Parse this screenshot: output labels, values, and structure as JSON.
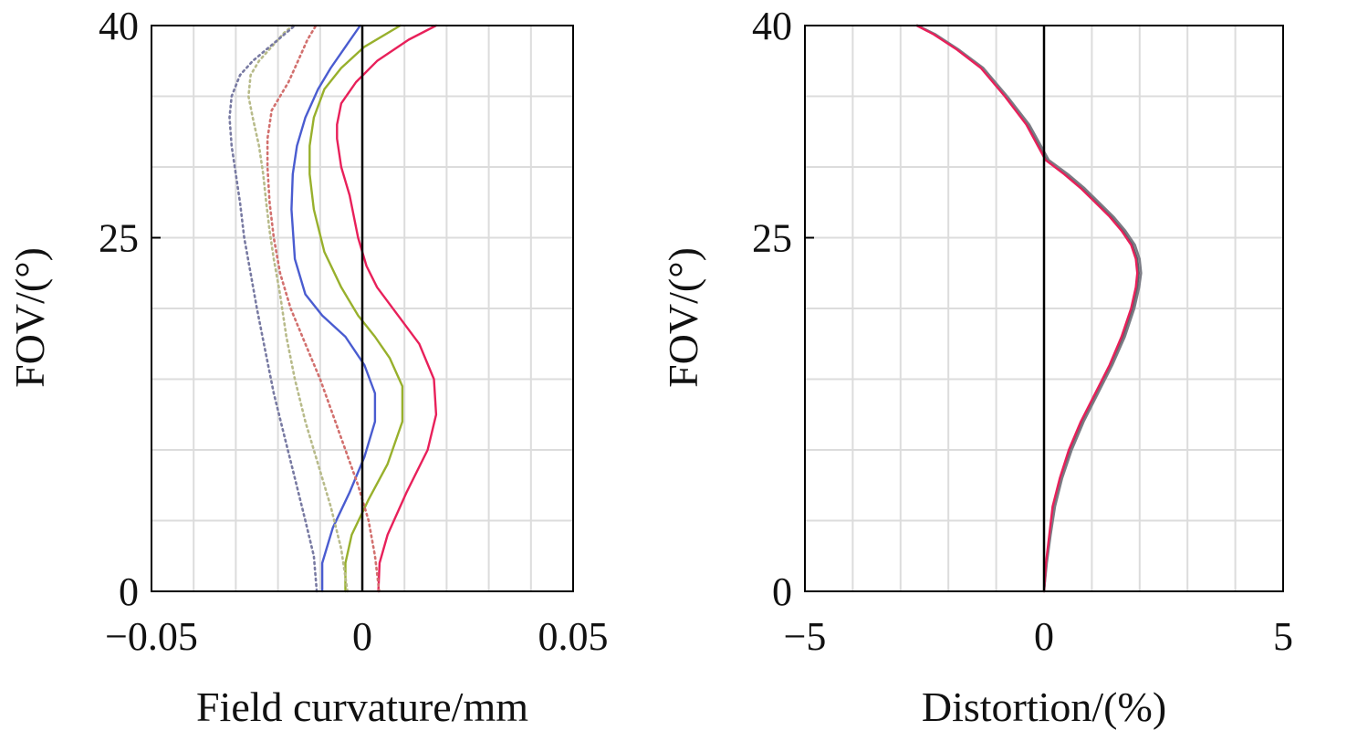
{
  "chart_data": [
    {
      "type": "line",
      "xlabel": "Field curvature/mm",
      "ylabel": "FOV/(°)",
      "xlim": [
        -0.05,
        0.05
      ],
      "ylim": [
        0,
        40
      ],
      "xticks": [
        -0.05,
        0,
        0.05
      ],
      "xtick_labels": [
        "−0.05",
        "0",
        "0.05"
      ],
      "yticks": [
        0,
        25,
        40
      ],
      "ytick_labels": [
        "0",
        "25",
        "40"
      ],
      "grid": true,
      "colors": {
        "sagittal_red": "#e8205a",
        "sagittal_green": "#98b02c",
        "sagittal_blue": "#4a5cd0",
        "tangential_red": "#d2706e",
        "tangential_green": "#b8bb8a",
        "tangential_blue": "#787aa2"
      },
      "series": [
        {
          "color": "#e8205a",
          "style": "solid",
          "x": [
            0.0038,
            0.0041,
            0.006,
            0.0105,
            0.0155,
            0.0175,
            0.017,
            0.0135,
            0.0085,
            0.0035,
            0.001,
            -0.001,
            -0.003,
            -0.005,
            -0.006,
            -0.006,
            -0.005,
            -0.0015,
            0.0035,
            0.011,
            0.0175
          ],
          "y": [
            0,
            2,
            4,
            7,
            10,
            12.5,
            15,
            17.5,
            19.5,
            21.5,
            23,
            25,
            28,
            30,
            32,
            33,
            34.5,
            36,
            37.5,
            39,
            40
          ]
        },
        {
          "color": "#98b02c",
          "style": "solid",
          "x": [
            -0.004,
            -0.004,
            -0.0025,
            0.0015,
            0.006,
            0.0095,
            0.0095,
            0.0065,
            0.003,
            -0.001,
            -0.005,
            -0.009,
            -0.0115,
            -0.0125,
            -0.0125,
            -0.0115,
            -0.009,
            -0.005,
            0.0005,
            0.009
          ],
          "y": [
            0,
            2,
            4,
            6.5,
            9,
            12,
            14.5,
            16.5,
            18,
            19.5,
            21.5,
            24,
            27,
            29.5,
            31.5,
            33.5,
            35.5,
            37,
            38.5,
            40
          ]
        },
        {
          "color": "#4a5cd0",
          "style": "solid",
          "x": [
            -0.0095,
            -0.0095,
            -0.007,
            -0.003,
            0.0005,
            0.003,
            0.003,
            0.0005,
            -0.004,
            -0.0095,
            -0.0135,
            -0.016,
            -0.0168,
            -0.0165,
            -0.0155,
            -0.0135,
            -0.0105,
            -0.0075,
            -0.004,
            -0.0005
          ],
          "y": [
            0,
            2,
            4.5,
            7,
            9.5,
            12,
            14,
            16,
            18,
            19.5,
            21,
            23.5,
            27,
            29.5,
            31.5,
            33.5,
            35.5,
            37,
            38.5,
            40
          ]
        },
        {
          "color": "#d2706e",
          "style": "dotted",
          "x": [
            0.004,
            0.003,
            0.0015,
            -0.001,
            -0.004,
            -0.007,
            -0.01,
            -0.0135,
            -0.017,
            -0.0195,
            -0.021,
            -0.022,
            -0.0225,
            -0.0225,
            -0.0215,
            -0.0195,
            -0.0175,
            -0.016,
            -0.0145,
            -0.013,
            -0.011
          ],
          "y": [
            0,
            2.5,
            5,
            7.5,
            10,
            12.5,
            15,
            17.5,
            20,
            22.5,
            25,
            27.5,
            30,
            32,
            34,
            35,
            36,
            37,
            38,
            39,
            40
          ]
        },
        {
          "color": "#b8bb8a",
          "style": "dotted",
          "x": [
            -0.0035,
            -0.005,
            -0.0075,
            -0.0105,
            -0.0135,
            -0.016,
            -0.018,
            -0.0195,
            -0.021,
            -0.022,
            -0.0228,
            -0.0235,
            -0.0245,
            -0.026,
            -0.027,
            -0.0265,
            -0.0245,
            -0.0215,
            -0.0185,
            -0.0165
          ],
          "y": [
            0,
            3,
            6,
            9,
            12,
            15,
            18,
            21,
            23.5,
            25.5,
            27.5,
            29.5,
            31.5,
            33.5,
            35,
            36.5,
            37.5,
            38.5,
            39.5,
            40
          ]
        },
        {
          "color": "#787aa2",
          "style": "dotted",
          "x": [
            -0.0108,
            -0.0115,
            -0.0135,
            -0.016,
            -0.0185,
            -0.021,
            -0.023,
            -0.025,
            -0.0265,
            -0.028,
            -0.029,
            -0.03,
            -0.031,
            -0.0315,
            -0.031,
            -0.029,
            -0.026,
            -0.022,
            -0.018,
            -0.016
          ],
          "y": [
            0,
            2.5,
            5,
            8,
            11,
            14,
            17,
            20,
            22.5,
            25,
            27.5,
            29.5,
            31.5,
            33.5,
            35,
            36.5,
            37.5,
            38.5,
            39.5,
            40
          ]
        }
      ]
    },
    {
      "type": "line",
      "xlabel": "Distortion/(%)",
      "ylabel": "FOV/(°)",
      "xlim": [
        -5,
        5
      ],
      "ylim": [
        0,
        40
      ],
      "xticks": [
        -5,
        0,
        5
      ],
      "xtick_labels": [
        "−5",
        "0",
        "5"
      ],
      "yticks": [
        0,
        25,
        40
      ],
      "ytick_labels": [
        "0",
        "25",
        "40"
      ],
      "grid": true,
      "series": [
        {
          "color": "#5f6068",
          "style": "solid",
          "x": [
            0,
            0.05,
            0.12,
            0.2,
            0.35,
            0.55,
            0.8,
            1.1,
            1.4,
            1.65,
            1.85,
            1.95,
            1.98,
            1.95,
            1.85,
            1.65,
            1.4,
            1.1,
            0.8,
            0.45,
            0.05,
            -0.35,
            -0.8,
            -1.3,
            -1.8,
            -2.3,
            -2.65
          ],
          "y": [
            0,
            2,
            4,
            6,
            8,
            10,
            12,
            14,
            16,
            18,
            20,
            21.5,
            22.5,
            23.5,
            24.5,
            25.5,
            26.5,
            27.5,
            28.5,
            29.5,
            30.5,
            33,
            35,
            37,
            38.3,
            39.4,
            40
          ]
        },
        {
          "color": "#7a7b84",
          "style": "solid",
          "x": [
            0,
            0.06,
            0.14,
            0.23,
            0.38,
            0.58,
            0.83,
            1.13,
            1.43,
            1.69,
            1.89,
            1.99,
            2.03,
            2.0,
            1.9,
            1.7,
            1.45,
            1.15,
            0.85,
            0.5,
            0.1,
            -0.31,
            -0.77,
            -1.27,
            -1.78,
            -2.28,
            -2.64
          ],
          "y": [
            0,
            2,
            4,
            6,
            8,
            10,
            12,
            14,
            16,
            18,
            20,
            21.5,
            22.5,
            23.5,
            24.5,
            25.5,
            26.5,
            27.5,
            28.5,
            29.5,
            30.5,
            33,
            35,
            37,
            38.3,
            39.4,
            40
          ]
        },
        {
          "color": "#e8205a",
          "style": "solid",
          "x": [
            0,
            0.04,
            0.11,
            0.18,
            0.33,
            0.52,
            0.77,
            1.07,
            1.37,
            1.62,
            1.82,
            1.92,
            1.95,
            1.92,
            1.82,
            1.62,
            1.37,
            1.07,
            0.77,
            0.42,
            0.03,
            -0.37,
            -0.82,
            -1.32,
            -1.82,
            -2.32,
            -2.66
          ],
          "y": [
            0,
            2,
            4,
            6,
            8,
            10,
            12,
            14,
            16,
            18,
            20,
            21.5,
            22.5,
            23.5,
            24.5,
            25.5,
            26.5,
            27.5,
            28.5,
            29.5,
            30.5,
            33,
            35,
            37,
            38.3,
            39.4,
            40
          ]
        }
      ]
    }
  ]
}
